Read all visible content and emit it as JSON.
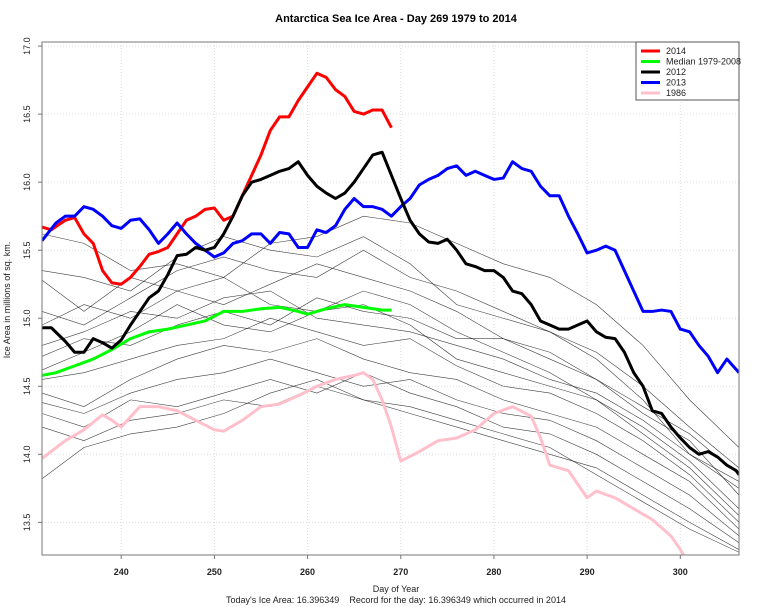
{
  "chart_data": {
    "type": "line",
    "title": "Antarctica Sea Ice Area - Day 269 1979 to 2014",
    "xlabel": "Day of Year",
    "ylabel": "Ice Area in millions of sq. km.",
    "footer": "Today's Ice Area: 16.396349    Record for the day: 16.396349 which occurred in 2014",
    "xlim": [
      231.5,
      306.3
    ],
    "ylim": [
      13.26,
      17.03
    ],
    "xticks": [
      "240",
      "250",
      "260",
      "270",
      "280",
      "290",
      "300"
    ],
    "yticks": [
      "13.5",
      "14.0",
      "14.5",
      "15.0",
      "15.5",
      "16.0",
      "16.5",
      "17.0"
    ],
    "grid": true,
    "legend_position": "top-right",
    "series": [
      {
        "name": "2014",
        "color": "#ff0000",
        "width": 3,
        "x": [
          231.5,
          232.5,
          234,
          235,
          236,
          237,
          238,
          239,
          240,
          241,
          242,
          243,
          244,
          245,
          246,
          247,
          248,
          249,
          250,
          251,
          252,
          253,
          254,
          255,
          256,
          257,
          258,
          259,
          260,
          261,
          262,
          263,
          264,
          265,
          266,
          267,
          268,
          269
        ],
        "y": [
          15.67,
          15.65,
          15.72,
          15.74,
          15.62,
          15.55,
          15.35,
          15.26,
          15.25,
          15.3,
          15.38,
          15.47,
          15.49,
          15.52,
          15.62,
          15.72,
          15.75,
          15.8,
          15.81,
          15.72,
          15.75,
          15.9,
          16.05,
          16.2,
          16.38,
          16.48,
          16.48,
          16.6,
          16.7,
          16.8,
          16.77,
          16.68,
          16.63,
          16.52,
          16.5,
          16.53,
          16.53,
          16.4
        ]
      },
      {
        "name": "Median 1979-2008",
        "color": "#00ff00",
        "width": 3,
        "x": [
          231.5,
          233,
          235,
          237,
          239,
          241,
          243,
          245,
          247,
          249,
          251,
          253,
          255,
          257,
          259,
          260,
          262,
          264,
          266,
          268,
          269
        ],
        "y": [
          14.58,
          14.6,
          14.65,
          14.7,
          14.77,
          14.85,
          14.9,
          14.92,
          14.95,
          14.98,
          15.05,
          15.05,
          15.07,
          15.08,
          15.05,
          15.03,
          15.07,
          15.1,
          15.08,
          15.06,
          15.06
        ]
      },
      {
        "name": "2012",
        "color": "#000000",
        "width": 3,
        "x": [
          231.5,
          232.5,
          234,
          235,
          236,
          237,
          238,
          239,
          240,
          241,
          242,
          243,
          244,
          245,
          246,
          247,
          248,
          249,
          250,
          251,
          252,
          253,
          254,
          255,
          256,
          257,
          258,
          259,
          260,
          261,
          262,
          263,
          264,
          265,
          266,
          267,
          268,
          269,
          270,
          271,
          272,
          273,
          274,
          275,
          276,
          277,
          278,
          279,
          280,
          281,
          282,
          283,
          284,
          285,
          286,
          287,
          288,
          289,
          290,
          291,
          292,
          293,
          294,
          295,
          296,
          297,
          298,
          299,
          300,
          301,
          302,
          303,
          304,
          305,
          306,
          306.3
        ],
        "y": [
          14.93,
          14.93,
          14.83,
          14.75,
          14.75,
          14.85,
          14.82,
          14.78,
          14.84,
          14.95,
          15.05,
          15.15,
          15.2,
          15.32,
          15.46,
          15.47,
          15.52,
          15.5,
          15.52,
          15.62,
          15.75,
          15.9,
          16.0,
          16.02,
          16.05,
          16.08,
          16.1,
          16.15,
          16.05,
          15.97,
          15.92,
          15.88,
          15.92,
          16.0,
          16.1,
          16.2,
          16.22,
          16.05,
          15.88,
          15.72,
          15.62,
          15.56,
          15.55,
          15.58,
          15.5,
          15.4,
          15.38,
          15.35,
          15.35,
          15.3,
          15.2,
          15.18,
          15.1,
          14.98,
          14.95,
          14.92,
          14.92,
          14.95,
          14.98,
          14.9,
          14.86,
          14.85,
          14.75,
          14.6,
          14.5,
          14.32,
          14.3,
          14.2,
          14.12,
          14.05,
          14.0,
          14.02,
          13.98,
          13.92,
          13.88,
          13.85
        ]
      },
      {
        "name": "2013",
        "color": "#0000ff",
        "width": 3,
        "x": [
          231.5,
          233,
          234,
          235,
          236,
          237,
          238,
          239,
          240,
          241,
          242,
          243,
          244,
          245,
          246,
          247,
          248,
          249,
          250,
          251,
          252,
          253,
          254,
          255,
          256,
          257,
          258,
          259,
          260,
          261,
          262,
          263,
          264,
          265,
          266,
          267,
          268,
          269,
          270,
          271,
          272,
          273,
          274,
          275,
          276,
          277,
          278,
          279,
          280,
          281,
          282,
          283,
          284,
          285,
          286,
          287,
          288,
          289,
          290,
          291,
          292,
          293,
          294,
          295,
          296,
          297,
          298,
          299,
          300,
          301,
          302,
          303,
          304,
          305,
          306.3
        ],
        "y": [
          15.57,
          15.7,
          15.75,
          15.75,
          15.82,
          15.8,
          15.75,
          15.68,
          15.66,
          15.72,
          15.73,
          15.65,
          15.55,
          15.62,
          15.7,
          15.62,
          15.55,
          15.5,
          15.45,
          15.48,
          15.55,
          15.57,
          15.62,
          15.62,
          15.55,
          15.63,
          15.62,
          15.52,
          15.52,
          15.65,
          15.63,
          15.68,
          15.8,
          15.88,
          15.82,
          15.82,
          15.8,
          15.75,
          15.82,
          15.88,
          15.98,
          16.02,
          16.05,
          16.1,
          16.12,
          16.05,
          16.08,
          16.05,
          16.02,
          16.03,
          16.15,
          16.1,
          16.08,
          15.97,
          15.9,
          15.9,
          15.75,
          15.62,
          15.48,
          15.5,
          15.53,
          15.5,
          15.35,
          15.2,
          15.05,
          15.05,
          15.06,
          15.05,
          14.92,
          14.9,
          14.8,
          14.72,
          14.6,
          14.7,
          14.6
        ]
      },
      {
        "name": "1986",
        "color": "#ffc0cb",
        "width": 3,
        "x": [
          231.5,
          234,
          236,
          238,
          239,
          240,
          242,
          244,
          246,
          248,
          250,
          251,
          253,
          255,
          257,
          259,
          261,
          263,
          265,
          266,
          267,
          268,
          269,
          270,
          272,
          274,
          276,
          278,
          280,
          282,
          284,
          285,
          286,
          288,
          290,
          291,
          293,
          295,
          297,
          299,
          300,
          301
        ],
        "y": [
          13.97,
          14.1,
          14.18,
          14.29,
          14.25,
          14.2,
          14.35,
          14.35,
          14.32,
          14.25,
          14.18,
          14.17,
          14.25,
          14.35,
          14.37,
          14.43,
          14.5,
          14.55,
          14.58,
          14.6,
          14.55,
          14.4,
          14.2,
          13.95,
          14.02,
          14.1,
          14.12,
          14.18,
          14.3,
          14.35,
          14.28,
          14.12,
          13.92,
          13.88,
          13.68,
          13.73,
          13.68,
          13.6,
          13.52,
          13.4,
          13.3,
          13.18
        ]
      }
    ],
    "other_years": {
      "color": "#000000",
      "x": [
        231.5,
        236,
        241,
        246,
        251,
        256,
        261,
        266,
        271,
        276,
        281,
        286,
        291,
        296,
        301,
        306.3
      ],
      "series": [
        [
          15.62,
          15.55,
          15.35,
          15.4,
          15.3,
          15.55,
          15.6,
          15.75,
          15.7,
          15.55,
          15.4,
          15.3,
          15.1,
          14.8,
          14.4,
          14.05
        ],
        [
          15.35,
          15.3,
          15.2,
          15.45,
          15.6,
          15.5,
          15.45,
          15.6,
          15.4,
          15.1,
          15.0,
          14.9,
          14.7,
          14.4,
          14.0,
          13.8
        ],
        [
          15.28,
          15.05,
          15.3,
          15.2,
          15.1,
          15.25,
          15.4,
          15.3,
          15.2,
          15.05,
          14.85,
          14.7,
          14.55,
          14.3,
          14.1,
          13.7
        ],
        [
          14.95,
          15.1,
          15.0,
          15.2,
          15.3,
          15.1,
          15.05,
          15.2,
          15.1,
          14.9,
          14.75,
          14.6,
          14.4,
          14.2,
          13.95,
          13.6
        ],
        [
          14.8,
          14.9,
          15.05,
          15.0,
          15.15,
          15.2,
          15.0,
          14.95,
          14.9,
          14.8,
          14.7,
          14.55,
          14.45,
          14.25,
          14.0,
          13.75
        ],
        [
          14.62,
          14.75,
          14.9,
          15.1,
          14.95,
          14.9,
          15.05,
          15.1,
          14.95,
          14.7,
          14.6,
          14.5,
          14.4,
          14.15,
          13.9,
          13.55
        ],
        [
          14.55,
          14.6,
          14.7,
          14.8,
          14.85,
          15.0,
          14.9,
          14.8,
          14.85,
          14.65,
          14.5,
          14.45,
          14.3,
          14.1,
          13.85,
          13.5
        ],
        [
          14.45,
          14.35,
          14.55,
          14.7,
          14.8,
          14.75,
          14.85,
          14.7,
          14.6,
          14.55,
          14.4,
          14.3,
          14.2,
          14.0,
          13.8,
          13.45
        ],
        [
          14.38,
          14.3,
          14.45,
          14.55,
          14.6,
          14.7,
          14.6,
          14.5,
          14.55,
          14.4,
          14.3,
          14.25,
          14.1,
          13.9,
          13.7,
          13.4
        ],
        [
          14.3,
          14.2,
          14.4,
          14.35,
          14.45,
          14.55,
          14.45,
          14.6,
          14.45,
          14.35,
          14.2,
          14.15,
          14.0,
          13.8,
          13.6,
          13.35
        ],
        [
          14.2,
          14.1,
          14.25,
          14.3,
          14.4,
          14.35,
          14.5,
          14.4,
          14.3,
          14.2,
          14.1,
          14.0,
          13.9,
          13.7,
          13.5,
          13.3
        ],
        [
          13.82,
          14.05,
          14.15,
          14.2,
          14.3,
          14.45,
          14.55,
          14.4,
          14.35,
          14.25,
          14.15,
          14.05,
          13.85,
          13.65,
          13.45,
          13.28
        ],
        [
          15.05,
          14.95,
          15.15,
          15.35,
          15.45,
          15.35,
          15.3,
          15.5,
          15.3,
          15.2,
          15.05,
          14.9,
          14.75,
          14.5,
          14.2,
          13.9
        ],
        [
          14.72,
          14.85,
          14.8,
          14.95,
          15.05,
          14.95,
          15.15,
          15.05,
          15.0,
          14.85,
          14.85,
          14.75,
          14.55,
          14.35,
          14.15,
          13.85
        ]
      ]
    }
  }
}
